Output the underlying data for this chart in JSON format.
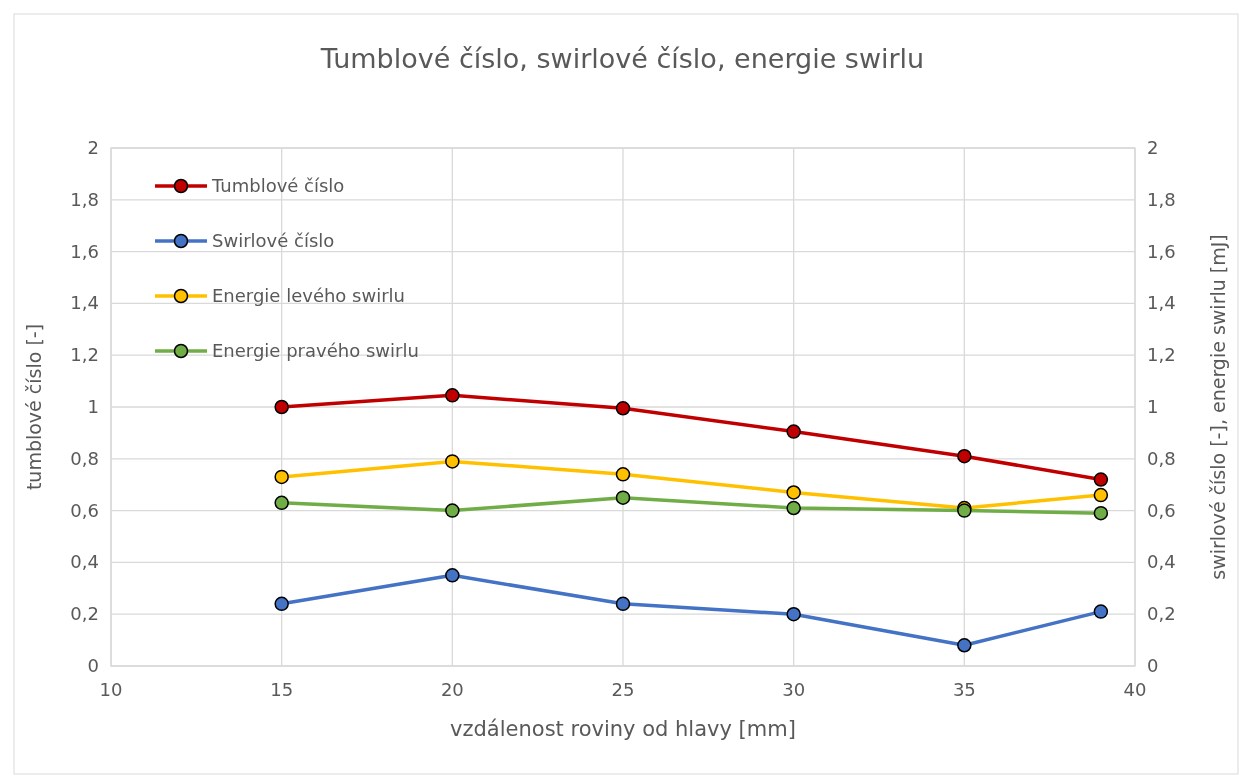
{
  "chart_data": {
    "type": "line",
    "title": "Tumblové číslo, swirlové číslo, energie swirlu",
    "xlabel": "vzdálenost roviny od hlavy [mm]",
    "ylabel": "tumblové číslo [-]",
    "y2label": "swirlové číslo [-], energie swirlu [mJ]",
    "x": [
      15,
      20,
      25,
      30,
      35,
      39
    ],
    "series": [
      {
        "name": "Tumblové číslo",
        "color": "#c00000",
        "values": [
          1.0,
          1.045,
          0.995,
          0.905,
          0.81,
          0.72
        ]
      },
      {
        "name": "Swirlové číslo",
        "color": "#4472c4",
        "values": [
          0.24,
          0.35,
          0.24,
          0.2,
          0.08,
          0.21
        ]
      },
      {
        "name": "Energie levého swirlu",
        "color": "#ffc000",
        "values": [
          0.73,
          0.79,
          0.74,
          0.67,
          0.61,
          0.66
        ]
      },
      {
        "name": "Energie pravého swirlu",
        "color": "#70ad47",
        "values": [
          0.63,
          0.6,
          0.65,
          0.61,
          0.6,
          0.59
        ]
      }
    ],
    "xlim": [
      10,
      40
    ],
    "xticks": [
      10,
      15,
      20,
      25,
      30,
      35,
      40
    ],
    "ylim": [
      0,
      2
    ],
    "yticks": [
      0,
      {
        "value": 0.2,
        "label": "0,2"
      },
      {
        "value": 0.4,
        "label": "0,4"
      },
      {
        "value": 0.6,
        "label": "0,6"
      },
      {
        "value": 0.8,
        "label": "0,8"
      },
      1,
      {
        "value": 1.2,
        "label": "1,2"
      },
      {
        "value": 1.4,
        "label": "1,4"
      },
      {
        "value": 1.6,
        "label": "1,6"
      },
      {
        "value": 1.8,
        "label": "1,8"
      },
      2
    ],
    "y2lim": [
      0,
      2
    ],
    "y2ticks": [
      0,
      {
        "value": 0.2,
        "label": "0,2"
      },
      {
        "value": 0.4,
        "label": "0,4"
      },
      {
        "value": 0.6,
        "label": "0,6"
      },
      {
        "value": 0.8,
        "label": "0,8"
      },
      1,
      {
        "value": 1.2,
        "label": "1,2"
      },
      {
        "value": 1.4,
        "label": "1,4"
      },
      {
        "value": 1.6,
        "label": "1,6"
      },
      {
        "value": 1.8,
        "label": "1,8"
      },
      2
    ],
    "grid": true,
    "legend": "top left",
    "marker": "circle",
    "line_style": "solid"
  }
}
